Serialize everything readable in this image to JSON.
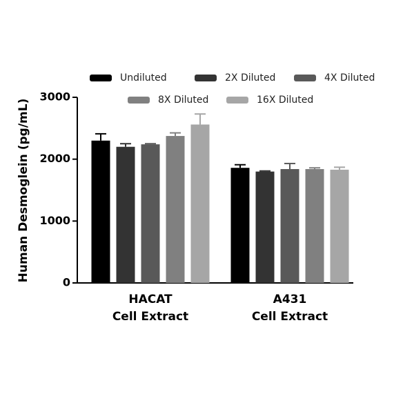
{
  "chart_data": {
    "type": "bar",
    "y_label": "Human Desmoglein (pg/mL)",
    "categories": [
      [
        "HACAT",
        "Cell Extract"
      ],
      [
        "A431",
        "Cell Extract"
      ]
    ],
    "series": [
      {
        "name": "Undiluted",
        "color": "#000000",
        "values": [
          2300,
          1860
        ],
        "errors": [
          110,
          50
        ]
      },
      {
        "name": "2X Diluted",
        "color": "#333333",
        "values": [
          2200,
          1800
        ],
        "errors": [
          50,
          10
        ]
      },
      {
        "name": "4X Diluted",
        "color": "#595959",
        "values": [
          2240,
          1840
        ],
        "errors": [
          10,
          90
        ]
      },
      {
        "name": "8X Diluted",
        "color": "#808080",
        "values": [
          2375,
          1840
        ],
        "errors": [
          50,
          20
        ]
      },
      {
        "name": "16X Diluted",
        "color": "#a6a6a6",
        "values": [
          2560,
          1830
        ],
        "errors": [
          170,
          40
        ]
      }
    ],
    "ylim": [
      0,
      3000
    ],
    "yticks": [
      0,
      1000,
      2000,
      3000
    ]
  }
}
